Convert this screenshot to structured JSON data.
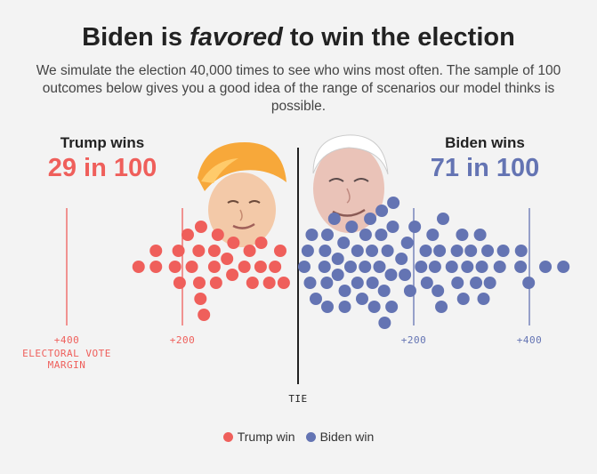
{
  "headline": {
    "before": "Biden is ",
    "emphasis": "favored",
    "after": " to win the election"
  },
  "subhead": "We simulate the election 40,000 times to see who wins most often. The sample of 100 outcomes below gives you a good idea of the range of scenarios our model thinks is possible.",
  "trump": {
    "label": "Trump wins",
    "count": "29 in 100",
    "color": "#ef5f5b"
  },
  "biden": {
    "label": "Biden wins",
    "count": "71 in 100",
    "color": "#6474b3"
  },
  "legend": {
    "trump": "Trump win",
    "biden": "Biden win"
  },
  "chart_data": {
    "type": "scatter",
    "title": "",
    "xlabel": "ELECTORAL VOTE MARGIN",
    "ylabel": "",
    "xlim": [
      -410,
      475
    ],
    "ticks": [
      {
        "value": -400,
        "label": "+400",
        "side": "trump"
      },
      {
        "value": -200,
        "label": "+200",
        "side": "trump"
      },
      {
        "value": 200,
        "label": "+200",
        "side": "biden"
      },
      {
        "value": 400,
        "label": "+400",
        "side": "biden"
      }
    ],
    "tie_label": "TIE",
    "axis_note": [
      "ELECTORAL VOTE",
      "MARGIN"
    ],
    "series": [
      {
        "name": "Trump win",
        "color": "#ef5f5b",
        "x": [
          -265,
          -235,
          -235,
          -202,
          -196,
          -194,
          -180,
          -173,
          -161,
          -160,
          -158,
          -157,
          -152,
          -134,
          -134,
          -131,
          -128,
          -112,
          -103,
          -101,
          -82,
          -73,
          -68,
          -54,
          -53,
          -39,
          -29,
          -20,
          -14
        ]
      },
      {
        "name": "Biden win",
        "color": "#6474b3",
        "x": [
          0,
          6,
          10,
          13,
          20,
          35,
          36,
          39,
          40,
          40,
          52,
          58,
          58,
          68,
          70,
          70,
          80,
          82,
          92,
          92,
          100,
          105,
          106,
          114,
          117,
          118,
          121,
          130,
          133,
          134,
          138,
          139,
          144,
          150,
          151,
          153,
          154,
          168,
          174,
          178,
          183,
          191,
          202,
          210,
          212,
          222,
          226,
          231,
          234,
          237,
          240,
          255,
          264,
          265,
          273,
          275,
          282,
          288,
          297,
          304,
          307,
          310,
          317,
          321,
          338,
          344,
          375,
          374,
          388,
          417,
          448
        ]
      }
    ]
  }
}
